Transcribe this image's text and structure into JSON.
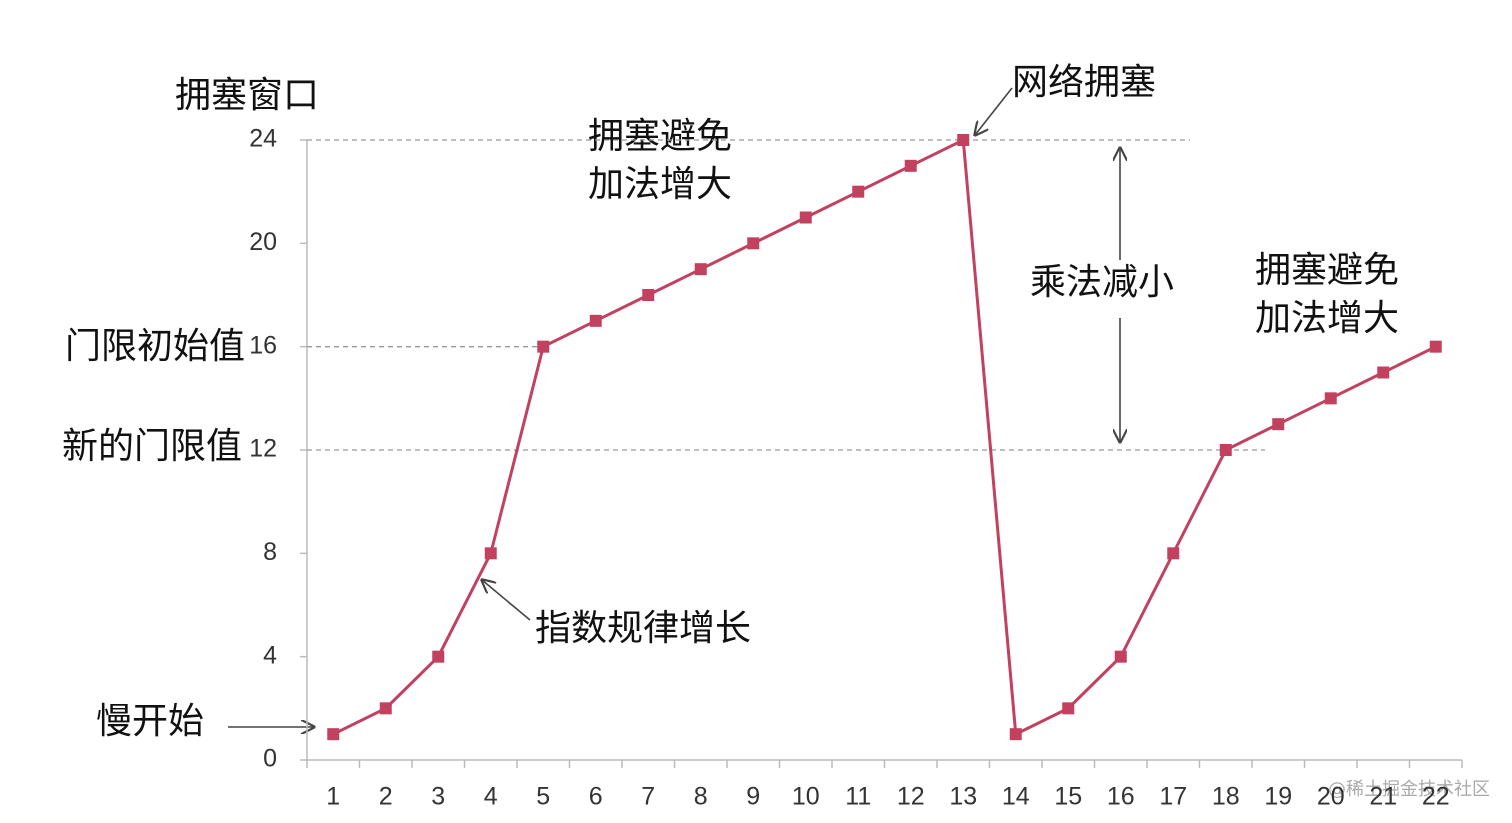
{
  "chart_data": {
    "type": "line",
    "y_label": "拥塞窗口",
    "categories": [
      "1",
      "2",
      "3",
      "4",
      "5",
      "6",
      "7",
      "8",
      "9",
      "10",
      "11",
      "12",
      "13",
      "14",
      "15",
      "16",
      "17",
      "18",
      "19",
      "20",
      "21",
      "22"
    ],
    "series": [
      {
        "name": "拥塞窗口",
        "color": "#c2415f",
        "values": [
          1,
          2,
          4,
          8,
          16,
          17,
          18,
          19,
          20,
          21,
          22,
          23,
          24,
          1,
          2,
          4,
          8,
          12,
          13,
          14,
          15,
          16
        ]
      }
    ],
    "ylim": [
      0,
      24
    ],
    "yticks": [
      0,
      4,
      8,
      12,
      16,
      20,
      24
    ],
    "grid": false,
    "reference_lines": [
      {
        "value": 24,
        "label": "网络拥塞"
      },
      {
        "value": 16,
        "label": "门限初始值"
      },
      {
        "value": 12,
        "label": "新的门限值"
      }
    ],
    "annotations": [
      "拥塞避免",
      "加法增大",
      "乘法减小",
      "拥塞避免",
      "加法增大",
      "指数规律增长",
      "慢开始"
    ],
    "watermark": "@稀土掘金技术社区"
  }
}
